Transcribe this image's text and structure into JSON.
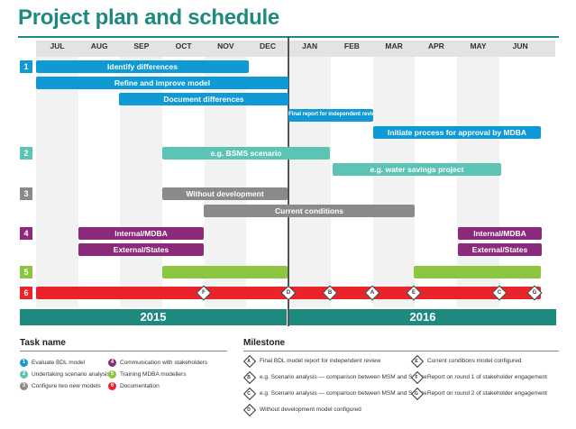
{
  "title": "Project plan and schedule",
  "months": [
    "JUL",
    "AUG",
    "SEP",
    "OCT",
    "NOV",
    "DEC",
    "JAN",
    "FEB",
    "MAR",
    "APR",
    "MAY",
    "JUN"
  ],
  "years": [
    "2015",
    "2016"
  ],
  "colors": {
    "task1": "#0f9ad6",
    "task2": "#5cc4b4",
    "task3": "#8a8a8a",
    "task4": "#8b2a7a",
    "task5": "#8cc63f",
    "task6": "#e8232a",
    "year": "#1e8a7f",
    "title": "#1e8a7f"
  },
  "task_numbers": [
    "1",
    "2",
    "3",
    "4",
    "5",
    "6"
  ],
  "bars": [
    {
      "label": "Identify differences",
      "task": "task1"
    },
    {
      "label": "Refine and improve model",
      "task": "task1"
    },
    {
      "label": "Document differences",
      "task": "task1"
    },
    {
      "label": "Final report for independent review",
      "task": "task1"
    },
    {
      "label": "Initiate process for approval by MDBA",
      "task": "task1"
    },
    {
      "label": "e.g. BSMS scenario",
      "task": "task2"
    },
    {
      "label": "e.g. water savings project",
      "task": "task2"
    },
    {
      "label": "Without development",
      "task": "task3"
    },
    {
      "label": "Current conditions",
      "task": "task3"
    },
    {
      "label": "Internal/MDBA",
      "task": "task4"
    },
    {
      "label": "External/States",
      "task": "task4"
    },
    {
      "label": "Internal/MDBA",
      "task": "task4"
    },
    {
      "label": "External/States",
      "task": "task4"
    },
    {
      "label": "",
      "task": "task5"
    },
    {
      "label": "",
      "task": "task5"
    },
    {
      "label": "",
      "task": "task6"
    }
  ],
  "milestones_on_bar": [
    "F",
    "D",
    "B",
    "A",
    "E",
    "C",
    "G"
  ],
  "legend": {
    "task_title": "Task name",
    "milestone_title": "Milestone",
    "tasks": [
      {
        "num": "1",
        "label": "Evaluate BDL model"
      },
      {
        "num": "2",
        "label": "Undertaking scenario analysis"
      },
      {
        "num": "3",
        "label": "Configure two new models"
      },
      {
        "num": "4",
        "label": "Communication with stakeholders"
      },
      {
        "num": "5",
        "label": "Training MDBA modellers"
      },
      {
        "num": "6",
        "label": "Documentation"
      }
    ],
    "milestones": [
      {
        "letter": "A",
        "label": "Final BDL model report for independent review"
      },
      {
        "letter": "B",
        "label": "e.g. Scenario analysis — comparison between MSM and Source"
      },
      {
        "letter": "C",
        "label": "e.g. Scenario analysis — comparison between MSM and Source"
      },
      {
        "letter": "D",
        "label": "Without development model configured"
      },
      {
        "letter": "E",
        "label": "Current conditions model configured"
      },
      {
        "letter": "F",
        "label": "Report on round 1 of stakeholder engagement"
      },
      {
        "letter": "G",
        "label": "Report on round 2 of stakeholder engagement"
      }
    ]
  }
}
